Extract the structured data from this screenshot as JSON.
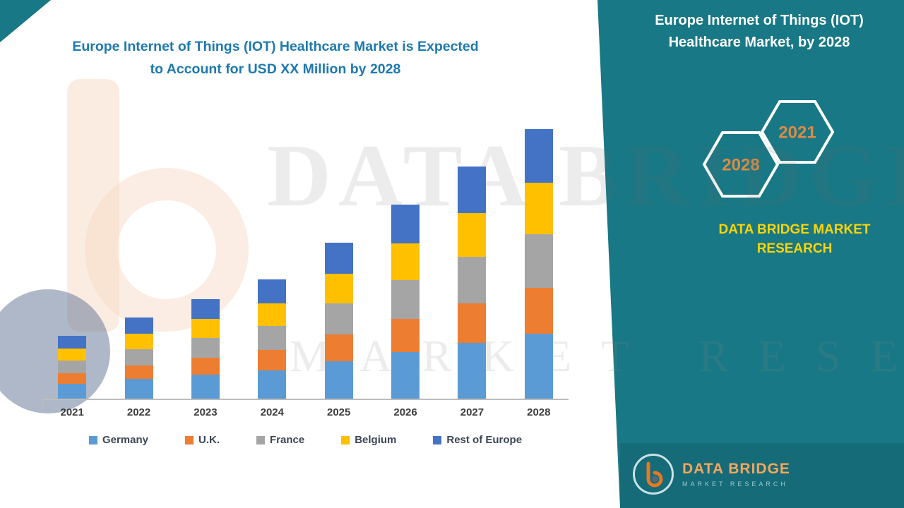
{
  "header": {
    "title_line1": "Europe Internet of Things (IOT) Healthcare Market is Expected",
    "title_line2": "to Account for USD XX Million by 2028"
  },
  "panel": {
    "title_line1": "Europe Internet of Things (IOT)",
    "title_line2": "Healthcare Market, by 2028",
    "hexagon_left_label": "2028",
    "hexagon_right_label": "2021",
    "brand_text": "DATA BRIDGE MARKET RESEARCH",
    "background_color": "#187885",
    "brand_text_color": "#FFD400",
    "hexagon_label_color": "#DD8A44"
  },
  "footer_logo": {
    "brand": "DATA BRIDGE",
    "sub": "MARKET RESEARCH",
    "letter": "b"
  },
  "watermark": {
    "line1": "DATA BRIDGE",
    "line2": "MARKET RESEARCH"
  },
  "chart_data": {
    "type": "bar",
    "stacked": true,
    "title": "Europe Internet of Things (IOT) Healthcare Market",
    "categories": [
      "2021",
      "2022",
      "2023",
      "2024",
      "2025",
      "2026",
      "2027",
      "2028"
    ],
    "series": [
      {
        "name": "Germany",
        "color": "#5B9BD5",
        "values": [
          5.5,
          7.2,
          8.9,
          10.6,
          13.9,
          17.3,
          20.6,
          24.0
        ]
      },
      {
        "name": "U.K.",
        "color": "#ED7D31",
        "values": [
          3.9,
          5.1,
          6.3,
          7.5,
          9.9,
          12.2,
          14.6,
          17.0
        ]
      },
      {
        "name": "France",
        "color": "#A5A5A5",
        "values": [
          4.6,
          6.0,
          7.4,
          8.8,
          11.6,
          14.4,
          17.2,
          20.0
        ]
      },
      {
        "name": "Belgium",
        "color": "#FFC000",
        "values": [
          4.4,
          5.7,
          7.0,
          8.4,
          11.0,
          13.7,
          16.3,
          19.0
        ]
      },
      {
        "name": "Rest of Europe",
        "color": "#4472C4",
        "values": [
          4.6,
          6.0,
          7.4,
          8.8,
          11.6,
          14.4,
          17.2,
          20.0
        ]
      }
    ],
    "xlabel": "",
    "ylabel": "",
    "ylim": [
      0,
      105
    ],
    "grid": false,
    "y_axis_labels_visible": false,
    "legend_position": "bottom"
  }
}
